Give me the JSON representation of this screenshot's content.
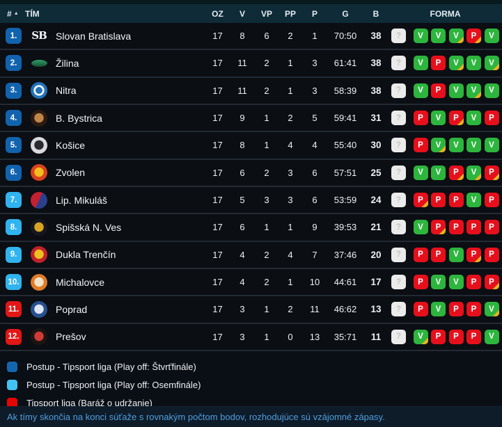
{
  "header": {
    "rank": "#",
    "sort_icon": "sort-ascending",
    "team": "TÍM",
    "oz": "OZ",
    "v": "V",
    "vp": "VP",
    "pp": "PP",
    "p": "P",
    "g": "G",
    "b": "B",
    "forma": "FORMA"
  },
  "forma_legend": {
    "Q": "upcoming-unknown",
    "V": "win",
    "P": "loss",
    "+": "overtime"
  },
  "colors": {
    "tier_quarterfinal": "#1263ae",
    "tier_octofinal": "#30b4ef",
    "tier_relegation": "#e31616",
    "forma_win": "#2db53e",
    "forma_loss": "#e6101c",
    "forma_overtime_corner": "#e8b31d",
    "forma_unknown": "#ebebeb",
    "header_bg": "#0e2b37",
    "footer_text": "#4f9fdf"
  },
  "rows": [
    {
      "rank": "1.",
      "tier": "quarterfinal",
      "team": "Slovan Bratislava",
      "logo": {
        "style": "mono",
        "label": "SB",
        "color": "#f3f7fa"
      },
      "oz": "17",
      "v": "8",
      "vp": "6",
      "pp": "2",
      "p": "1",
      "g": "70:50",
      "b": "38",
      "forma": [
        "Q",
        "V",
        "V",
        "V+",
        "P+",
        "V"
      ]
    },
    {
      "rank": "2.",
      "tier": "quarterfinal",
      "team": "Žilina",
      "logo": {
        "style": "flat",
        "c1": "#2f9e68",
        "c2": "#174f33"
      },
      "oz": "17",
      "v": "11",
      "vp": "2",
      "pp": "1",
      "p": "3",
      "g": "61:41",
      "b": "38",
      "forma": [
        "Q",
        "V",
        "P",
        "V+",
        "V",
        "V+"
      ]
    },
    {
      "rank": "3.",
      "tier": "quarterfinal",
      "team": "Nitra",
      "logo": {
        "style": "ring",
        "c1": "#2272b8",
        "c2": "#f4f8fb"
      },
      "oz": "17",
      "v": "11",
      "vp": "2",
      "pp": "1",
      "p": "3",
      "g": "58:39",
      "b": "38",
      "forma": [
        "Q",
        "V",
        "P",
        "V",
        "V+",
        "V"
      ]
    },
    {
      "rank": "4.",
      "tier": "quarterfinal",
      "team": "B. Bystrica",
      "logo": {
        "style": "disc",
        "c1": "#2c1b12",
        "c2": "#c08548"
      },
      "oz": "17",
      "v": "9",
      "vp": "1",
      "pp": "2",
      "p": "5",
      "g": "59:41",
      "b": "31",
      "forma": [
        "Q",
        "P",
        "V",
        "P+",
        "V",
        "P"
      ]
    },
    {
      "rank": "5.",
      "tier": "quarterfinal",
      "team": "Košice",
      "logo": {
        "style": "disc",
        "c1": "#d9d9de",
        "c2": "#2a2a30"
      },
      "oz": "17",
      "v": "8",
      "vp": "1",
      "pp": "4",
      "p": "4",
      "g": "55:40",
      "b": "30",
      "forma": [
        "Q",
        "P",
        "V+",
        "V",
        "V",
        "V"
      ]
    },
    {
      "rank": "6.",
      "tier": "quarterfinal",
      "team": "Zvolen",
      "logo": {
        "style": "disc",
        "c1": "#d8411f",
        "c2": "#f2bd1d"
      },
      "oz": "17",
      "v": "6",
      "vp": "2",
      "pp": "3",
      "p": "6",
      "g": "57:51",
      "b": "25",
      "forma": [
        "Q",
        "V",
        "V",
        "P+",
        "V+",
        "P+"
      ]
    },
    {
      "rank": "7.",
      "tier": "octofinal",
      "team": "Lip. Mikuláš",
      "logo": {
        "style": "split",
        "c1": "#c52030",
        "c2": "#2b3f8c"
      },
      "oz": "17",
      "v": "5",
      "vp": "3",
      "pp": "3",
      "p": "6",
      "g": "53:59",
      "b": "24",
      "forma": [
        "Q",
        "P+",
        "P",
        "P",
        "V",
        "P"
      ]
    },
    {
      "rank": "8.",
      "tier": "octofinal",
      "team": "Spišská N. Ves",
      "logo": {
        "style": "disc",
        "c1": "#17171f",
        "c2": "#d9a520"
      },
      "oz": "17",
      "v": "6",
      "vp": "1",
      "pp": "1",
      "p": "9",
      "g": "39:53",
      "b": "21",
      "forma": [
        "Q",
        "V",
        "P+",
        "P",
        "P",
        "P"
      ]
    },
    {
      "rank": "9.",
      "tier": "octofinal",
      "team": "Dukla Trenčín",
      "logo": {
        "style": "disc",
        "c1": "#c2212b",
        "c2": "#edc11f"
      },
      "oz": "17",
      "v": "4",
      "vp": "2",
      "pp": "4",
      "p": "7",
      "g": "37:46",
      "b": "20",
      "forma": [
        "Q",
        "P",
        "P",
        "V",
        "P+",
        "P"
      ]
    },
    {
      "rank": "10.",
      "tier": "octofinal",
      "team": "Michalovce",
      "logo": {
        "style": "disc",
        "c1": "#e07b28",
        "c2": "#f2e3c8"
      },
      "oz": "17",
      "v": "4",
      "vp": "2",
      "pp": "1",
      "p": "10",
      "g": "44:61",
      "b": "17",
      "forma": [
        "Q",
        "P",
        "V",
        "V",
        "P",
        "P+"
      ]
    },
    {
      "rank": "11.",
      "tier": "relegation",
      "team": "Poprad",
      "logo": {
        "style": "disc",
        "c1": "#27508f",
        "c2": "#dde6f2"
      },
      "oz": "17",
      "v": "3",
      "vp": "1",
      "pp": "2",
      "p": "11",
      "g": "46:62",
      "b": "13",
      "forma": [
        "Q",
        "P",
        "V",
        "P",
        "P",
        "V+"
      ]
    },
    {
      "rank": "12.",
      "tier": "relegation",
      "team": "Prešov",
      "logo": {
        "style": "disc",
        "c1": "#1d1512",
        "c2": "#cf3b36"
      },
      "oz": "17",
      "v": "3",
      "vp": "1",
      "pp": "0",
      "p": "13",
      "g": "35:71",
      "b": "11",
      "forma": [
        "Q",
        "V+",
        "P",
        "P",
        "P",
        "V"
      ]
    }
  ],
  "legend": [
    {
      "color": "#1467ae",
      "label": "Postup - Tipsport liga (Play off: Štvrťfinále)"
    },
    {
      "color": "#41c3f2",
      "label": "Postup - Tipsport liga (Play off: Osemfinále)"
    },
    {
      "color": "#e60505",
      "label": "Tipsport liga (Baráž o udržanie)"
    }
  ],
  "footer": {
    "note": "Ak tímy skončia na konci súťaže s rovnakým počtom bodov, rozhodujúce sú vzájomné zápasy."
  }
}
